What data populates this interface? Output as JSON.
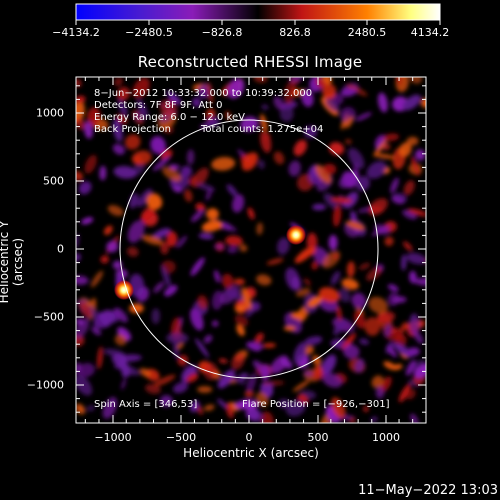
{
  "colorbar": {
    "tick_labels": [
      "−4134.2",
      "−2480.5",
      "−826.8",
      "826.8",
      "2480.5",
      "4134.2"
    ],
    "colors": [
      "#0000ff",
      "#8a1cb8",
      "#000000",
      "#c01515",
      "#ff8000",
      "#ffff80",
      "#ffffff"
    ]
  },
  "plot": {
    "title": "Reconstructed RHESSI Image",
    "annotations": {
      "time_range": "8−Jun−2012 10:33:32.000 to 10:39:32.000",
      "detectors": "Detectors: 7F 8F 9F, Att 0",
      "energy_range": "Energy Range: 6.0 − 12.0 keV",
      "method": "Back Projection",
      "total_counts": "Total counts: 1.275e+04",
      "spin_axis": "Spin Axis = [346,53]",
      "flare_position": "Flare Position = [−926,−301]"
    },
    "x_axis": {
      "label": "Heliocentric X (arcsec)",
      "ticks": [
        "−1000",
        "−500",
        "0",
        "500",
        "1000"
      ]
    },
    "y_axis": {
      "label": "Heliocentric Y (arcsec)",
      "ticks": [
        "1000",
        "500",
        "0",
        "−500",
        "−1000"
      ]
    }
  },
  "timestamp": "11−May−2022 13:03"
}
